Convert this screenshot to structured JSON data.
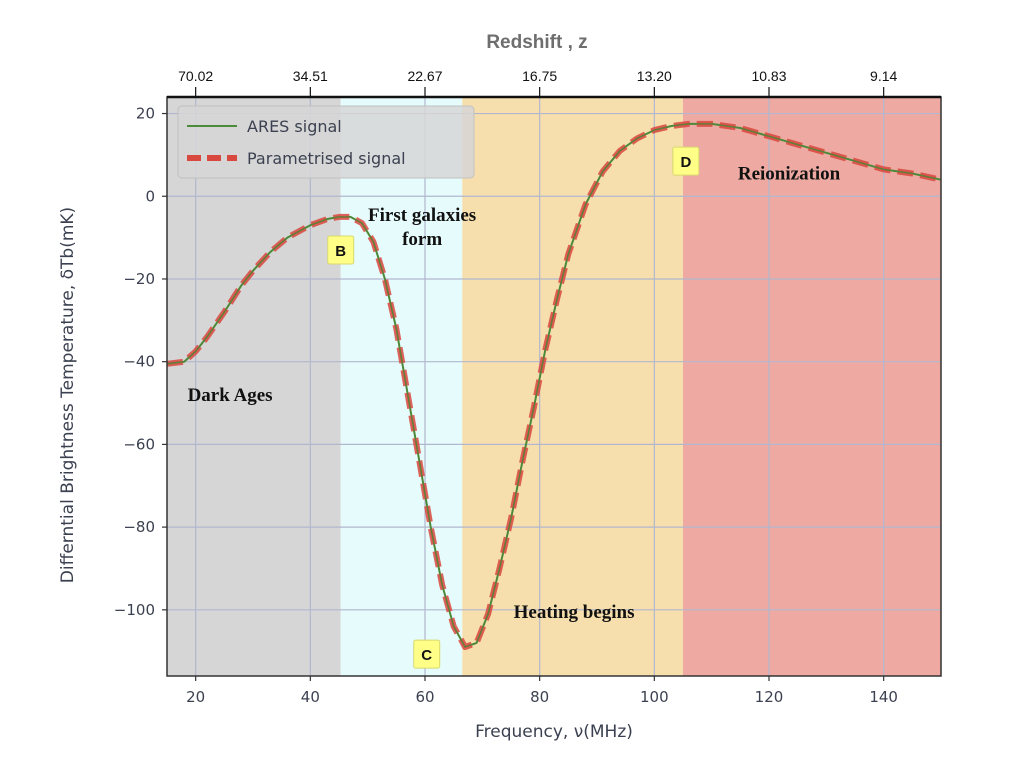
{
  "chart_data": {
    "type": "line",
    "title": "",
    "xlabel": "Frequency, ν(MHz)",
    "ylabel": "Differntial Brightness Temperature, δTb(mK)",
    "xlim": [
      15,
      150
    ],
    "ylim": [
      -116,
      24
    ],
    "x_ticks": [
      20,
      40,
      60,
      80,
      100,
      120,
      140
    ],
    "y_ticks": [
      20,
      0,
      -20,
      -40,
      -60,
      -80,
      -100
    ],
    "y_tick_labels": [
      "20",
      "0",
      "−20",
      "−40",
      "−60",
      "−80",
      "−100"
    ],
    "grid": true,
    "top_axis": {
      "label": "Redshift , z",
      "ticks": [
        {
          "freq": 20,
          "label": "70.02"
        },
        {
          "freq": 40,
          "label": "34.51"
        },
        {
          "freq": 60,
          "label": "22.67"
        },
        {
          "freq": 80,
          "label": "16.75"
        },
        {
          "freq": 100,
          "label": "13.20"
        },
        {
          "freq": 120,
          "label": "10.83"
        },
        {
          "freq": 140,
          "label": "9.14"
        }
      ]
    },
    "regions": [
      {
        "name": "Dark Ages",
        "from": 15,
        "to": 45.3,
        "color": "#d6d6d6"
      },
      {
        "name": "First galaxies form",
        "from": 45.3,
        "to": 66.5,
        "color": "#e6fbfb"
      },
      {
        "name": "Heating begins",
        "from": 66.5,
        "to": 105,
        "color": "#f7dfad"
      },
      {
        "name": "Reionization",
        "from": 105,
        "to": 150,
        "color": "#eeaaa2"
      }
    ],
    "region_labels": [
      {
        "lines": [
          "Dark Ages"
        ],
        "x": 26,
        "y": -49.5
      },
      {
        "lines": [
          "First galaxies",
          "form"
        ],
        "x": 59.5,
        "y": -6
      },
      {
        "lines": [
          "Heating begins"
        ],
        "x": 86,
        "y": -102
      },
      {
        "lines": [
          "Reionization"
        ],
        "x": 123.5,
        "y": 4
      }
    ],
    "point_labels": [
      {
        "label": "B",
        "x": 45.3,
        "y": -13
      },
      {
        "label": "C",
        "x": 60.3,
        "y": -110.7
      },
      {
        "label": "D",
        "x": 105.5,
        "y": 8.5
      }
    ],
    "series": [
      {
        "name": "ARES signal",
        "color": "#4d8a3a",
        "style": "solid",
        "x": [
          15,
          18,
          20,
          22,
          25,
          28,
          30,
          33,
          36,
          40,
          43,
          45,
          47,
          49,
          51,
          53,
          55,
          57,
          59,
          61,
          63,
          65,
          67,
          69,
          71,
          73,
          75,
          77,
          79,
          81,
          83,
          85,
          88,
          91,
          94,
          97,
          100,
          103,
          106,
          110,
          115,
          120,
          125,
          130,
          135,
          140,
          145,
          150
        ],
        "y": [
          -40.5,
          -40,
          -37.5,
          -34,
          -28,
          -21.5,
          -18,
          -13.5,
          -10,
          -7,
          -5.5,
          -5,
          -5,
          -6.5,
          -11,
          -20,
          -32,
          -48,
          -64,
          -80,
          -94,
          -104,
          -109,
          -108,
          -101,
          -90,
          -78,
          -64,
          -51,
          -37,
          -25,
          -14,
          -2,
          6,
          11,
          14,
          16,
          17,
          17.5,
          17.5,
          16.5,
          14.5,
          12.5,
          10.5,
          8.5,
          6.5,
          5.5,
          4
        ]
      },
      {
        "name": "Parametrised signal",
        "color": "#d8483e",
        "style": "dashed",
        "x": [
          15,
          18,
          20,
          22,
          25,
          28,
          30,
          33,
          36,
          40,
          43,
          45,
          47,
          49,
          51,
          53,
          55,
          57,
          59,
          61,
          63,
          65,
          67,
          69,
          71,
          73,
          75,
          77,
          79,
          81,
          83,
          85,
          88,
          91,
          94,
          97,
          100,
          103,
          106,
          110,
          115,
          120,
          125,
          130,
          135,
          140,
          145,
          150
        ],
        "y": [
          -40.5,
          -40,
          -37.5,
          -34,
          -28,
          -21.5,
          -18,
          -13.5,
          -10,
          -7,
          -5.5,
          -5,
          -5,
          -6.5,
          -11,
          -20,
          -32,
          -48,
          -64,
          -80,
          -94,
          -104,
          -109,
          -108,
          -101,
          -90,
          -78,
          -64,
          -51,
          -37,
          -25,
          -14,
          -2,
          6,
          11,
          14,
          16,
          17,
          17.5,
          17.5,
          16.5,
          14.5,
          12.5,
          10.5,
          8.5,
          6.5,
          5.5,
          4
        ]
      }
    ],
    "legend": {
      "placement": "top-left"
    },
    "colors": {
      "grid": "#b2b7cf",
      "axis": "#333333",
      "label_box": "#ffff88"
    }
  }
}
